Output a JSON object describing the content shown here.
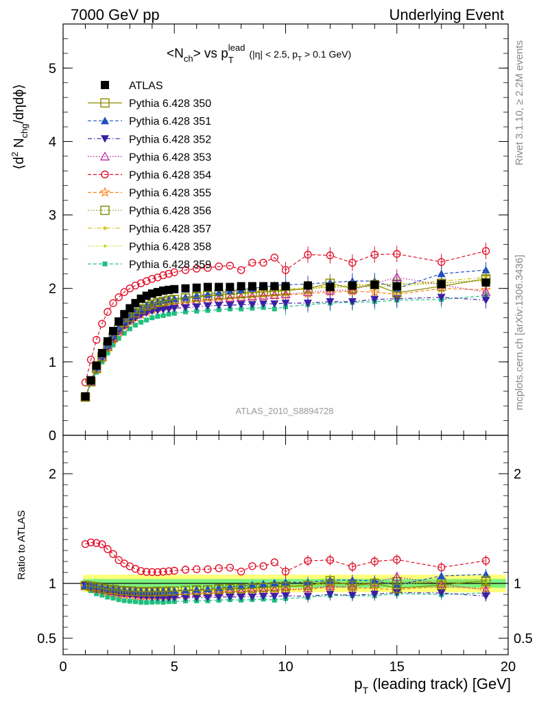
{
  "header": {
    "left": "7000 GeV pp",
    "right": "Underlying Event"
  },
  "side_labels": {
    "rivet": "Rivet 3.1.10, ≥ 2.2M events",
    "mcplots": "mcplots.cern.ch [arXiv:1306.3436]"
  },
  "watermark": "ATLAS_2010_S8894728",
  "chart_data": [
    {
      "type": "scatter",
      "title": "<N_ch> vs p_T^lead (|η| < 2.5, p_T > 0.1 GeV)",
      "ylabel": "⟨d² N_chg/dηdϕ⟩",
      "xlabel": "p_T (leading track) [GeV]",
      "xlim": [
        0,
        20
      ],
      "ylim": [
        0,
        5.6
      ],
      "y_ticks": [
        0,
        1,
        2,
        3,
        4,
        5
      ],
      "x": [
        1.0,
        1.25,
        1.5,
        1.75,
        2.0,
        2.25,
        2.5,
        2.75,
        3.0,
        3.25,
        3.5,
        3.75,
        4.0,
        4.25,
        4.5,
        4.75,
        5.0,
        5.5,
        6.0,
        6.5,
        7.0,
        7.5,
        8.0,
        8.5,
        9.0,
        9.5,
        10.0,
        11.0,
        12.0,
        13.0,
        14.0,
        15.0,
        17.0,
        19.0
      ],
      "series": [
        {
          "name": "ATLAS",
          "color": "#000000",
          "marker": "filled-square",
          "dash": "none",
          "values": [
            0.53,
            0.75,
            0.95,
            1.12,
            1.28,
            1.42,
            1.55,
            1.65,
            1.73,
            1.8,
            1.86,
            1.9,
            1.93,
            1.95,
            1.97,
            1.98,
            1.99,
            2.0,
            2.01,
            2.02,
            2.02,
            2.02,
            2.03,
            2.03,
            2.03,
            2.03,
            2.03,
            2.04,
            2.02,
            2.04,
            2.05,
            2.03,
            2.06,
            2.08
          ]
        },
        {
          "name": "Pythia 6.428 350",
          "color": "#8b8b00",
          "marker": "open-square",
          "dash": "solid",
          "values": [
            0.52,
            0.73,
            0.92,
            1.07,
            1.21,
            1.34,
            1.45,
            1.54,
            1.61,
            1.67,
            1.72,
            1.76,
            1.78,
            1.81,
            1.82,
            1.84,
            1.85,
            1.87,
            1.88,
            1.9,
            1.91,
            1.92,
            1.93,
            1.94,
            1.95,
            1.96,
            1.97,
            2.0,
            2.07,
            2.0,
            2.05,
            1.94,
            2.03,
            2.13
          ]
        },
        {
          "name": "Pythia 6.428 351",
          "color": "#1f4fbf",
          "marker": "filled-triangle-up",
          "dash": "dashed",
          "values": [
            0.52,
            0.74,
            0.93,
            1.09,
            1.23,
            1.36,
            1.47,
            1.56,
            1.63,
            1.69,
            1.73,
            1.77,
            1.8,
            1.82,
            1.84,
            1.85,
            1.86,
            1.88,
            1.9,
            1.92,
            1.94,
            1.96,
            1.98,
            2.0,
            2.02,
            2.04,
            2.05,
            2.06,
            2.08,
            2.1,
            2.1,
            2.0,
            2.2,
            2.25
          ]
        },
        {
          "name": "Pythia 6.428 352",
          "color": "#3a1fa6",
          "marker": "filled-triangle-down",
          "dash": "dash-dot",
          "values": [
            0.52,
            0.72,
            0.9,
            1.05,
            1.19,
            1.31,
            1.41,
            1.49,
            1.55,
            1.6,
            1.64,
            1.67,
            1.69,
            1.7,
            1.71,
            1.72,
            1.73,
            1.74,
            1.75,
            1.76,
            1.77,
            1.77,
            1.78,
            1.78,
            1.79,
            1.79,
            1.8,
            1.8,
            1.82,
            1.82,
            1.85,
            1.86,
            1.88,
            1.84
          ]
        },
        {
          "name": "Pythia 6.428 353",
          "color": "#b5179e",
          "marker": "open-triangle-up",
          "dash": "dotted",
          "values": [
            0.52,
            0.73,
            0.91,
            1.06,
            1.2,
            1.32,
            1.43,
            1.51,
            1.58,
            1.64,
            1.68,
            1.71,
            1.74,
            1.76,
            1.77,
            1.79,
            1.8,
            1.82,
            1.83,
            1.85,
            1.86,
            1.87,
            1.88,
            1.89,
            1.9,
            1.91,
            1.92,
            1.95,
            1.97,
            1.98,
            2.07,
            2.15,
            2.05,
            1.95
          ]
        },
        {
          "name": "Pythia 6.428 354",
          "color": "#e0102a",
          "marker": "open-circle",
          "dash": "dashed",
          "values": [
            0.72,
            1.03,
            1.3,
            1.52,
            1.68,
            1.8,
            1.88,
            1.95,
            2.0,
            2.04,
            2.07,
            2.1,
            2.13,
            2.15,
            2.18,
            2.2,
            2.22,
            2.25,
            2.27,
            2.28,
            2.3,
            2.31,
            2.25,
            2.35,
            2.35,
            2.42,
            2.25,
            2.46,
            2.45,
            2.35,
            2.46,
            2.47,
            2.36,
            2.51
          ]
        },
        {
          "name": "Pythia 6.428 355",
          "color": "#ff7f0e",
          "marker": "open-star",
          "dash": "dashed",
          "values": [
            0.52,
            0.72,
            0.9,
            1.05,
            1.18,
            1.3,
            1.4,
            1.48,
            1.55,
            1.6,
            1.64,
            1.68,
            1.71,
            1.73,
            1.75,
            1.76,
            1.78,
            1.8,
            1.82,
            1.83,
            1.84,
            1.86,
            1.87,
            1.88,
            1.89,
            1.9,
            1.91,
            1.93,
            1.95,
            1.96,
            1.95,
            1.92,
            2.0,
            1.98
          ]
        },
        {
          "name": "Pythia 6.428 356",
          "color": "#7a8a00",
          "marker": "open-square",
          "dash": "dotted",
          "values": [
            0.52,
            0.73,
            0.91,
            1.07,
            1.21,
            1.33,
            1.44,
            1.53,
            1.6,
            1.66,
            1.71,
            1.75,
            1.78,
            1.8,
            1.82,
            1.84,
            1.85,
            1.87,
            1.89,
            1.9,
            1.92,
            1.93,
            1.94,
            1.95,
            1.96,
            1.97,
            1.98,
            2.0,
            2.02,
            2.03,
            2.05,
            2.06,
            2.07,
            2.12
          ]
        },
        {
          "name": "Pythia 6.428 357",
          "color": "#d4c000",
          "marker": "filled-star-small",
          "dash": "dash-dot",
          "values": [
            0.52,
            0.73,
            0.92,
            1.07,
            1.21,
            1.34,
            1.45,
            1.54,
            1.61,
            1.67,
            1.72,
            1.75,
            1.78,
            1.81,
            1.83,
            1.84,
            1.86,
            1.88,
            1.9,
            1.91,
            1.93,
            1.94,
            1.95,
            1.96,
            1.97,
            1.98,
            1.99,
            2.01,
            2.03,
            2.05,
            2.06,
            2.05,
            2.1,
            2.15
          ]
        },
        {
          "name": "Pythia 6.428 358",
          "color": "#c6d600",
          "marker": "filled-dot-small",
          "dash": "dotted",
          "values": [
            0.52,
            0.73,
            0.91,
            1.06,
            1.2,
            1.33,
            1.44,
            1.52,
            1.59,
            1.65,
            1.7,
            1.73,
            1.76,
            1.79,
            1.81,
            1.82,
            1.84,
            1.86,
            1.88,
            1.89,
            1.91,
            1.92,
            1.93,
            1.94,
            1.95,
            1.96,
            1.97,
            1.99,
            2.01,
            2.02,
            2.03,
            2.02,
            2.08,
            2.1
          ]
        },
        {
          "name": "Pythia 6.428 359",
          "color": "#20c080",
          "marker": "filled-square-small",
          "dash": "dashed",
          "values": [
            0.51,
            0.7,
            0.86,
            1.0,
            1.12,
            1.23,
            1.32,
            1.39,
            1.45,
            1.5,
            1.54,
            1.57,
            1.6,
            1.62,
            1.63,
            1.65,
            1.66,
            1.68,
            1.69,
            1.7,
            1.71,
            1.72,
            1.72,
            1.73,
            1.74,
            1.72,
            1.75,
            1.78,
            1.8,
            1.81,
            1.82,
            1.84,
            1.85,
            1.9
          ]
        }
      ]
    },
    {
      "type": "scatter",
      "ylabel": "Ratio to ATLAS",
      "xlim": [
        0,
        20
      ],
      "ylim": [
        0.35,
        2.35
      ],
      "y_ticks": [
        0.5,
        1,
        2
      ],
      "x_ticks": [
        0,
        5,
        10,
        15,
        20
      ],
      "bands": {
        "inner_color": "#7ef27e",
        "outer_color": "#ffff7a",
        "inner_halfwidth": 0.04,
        "outer_halfwidth": 0.08
      }
    }
  ]
}
